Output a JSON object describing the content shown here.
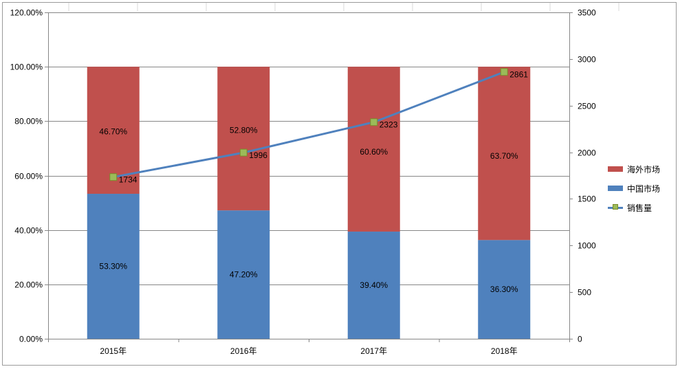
{
  "chart_data": {
    "type": "bar",
    "stacked": true,
    "categories": [
      "2015年",
      "2016年",
      "2017年",
      "2018年"
    ],
    "series": [
      {
        "name": "中国市场",
        "axis": "left",
        "kind": "bar",
        "values": [
          53.3,
          47.2,
          39.4,
          36.3
        ],
        "labels": [
          "53.30%",
          "47.20%",
          "39.40%",
          "36.30%"
        ],
        "color": "#4f81bd"
      },
      {
        "name": "海外市场",
        "axis": "left",
        "kind": "bar",
        "values": [
          46.7,
          52.8,
          60.6,
          63.7
        ],
        "labels": [
          "46.70%",
          "52.80%",
          "60.60%",
          "63.70%"
        ],
        "color": "#c0504d"
      },
      {
        "name": "销售量",
        "axis": "right",
        "kind": "line",
        "values": [
          1734,
          1996,
          2323,
          2861
        ],
        "labels": [
          "1734",
          "1996",
          "2323",
          "2861"
        ],
        "color": "#4f81bd",
        "marker_color": "#9bbb59"
      }
    ],
    "y_left": {
      "min": 0,
      "max": 120,
      "ticks": [
        "0.00%",
        "20.00%",
        "40.00%",
        "60.00%",
        "80.00%",
        "100.00%",
        "120.00%"
      ],
      "tick_values": [
        0,
        20,
        40,
        60,
        80,
        100,
        120
      ]
    },
    "y_right": {
      "min": 0,
      "max": 3500,
      "ticks": [
        "0",
        "500",
        "1000",
        "1500",
        "2000",
        "2500",
        "3000",
        "3500"
      ],
      "tick_values": [
        0,
        500,
        1000,
        1500,
        2000,
        2500,
        3000,
        3500
      ]
    },
    "grid": true,
    "legend": {
      "position": "right",
      "items": [
        "海外市场",
        "中国市场",
        "销售量"
      ]
    },
    "title": "",
    "xlabel": "",
    "ylabel": ""
  }
}
